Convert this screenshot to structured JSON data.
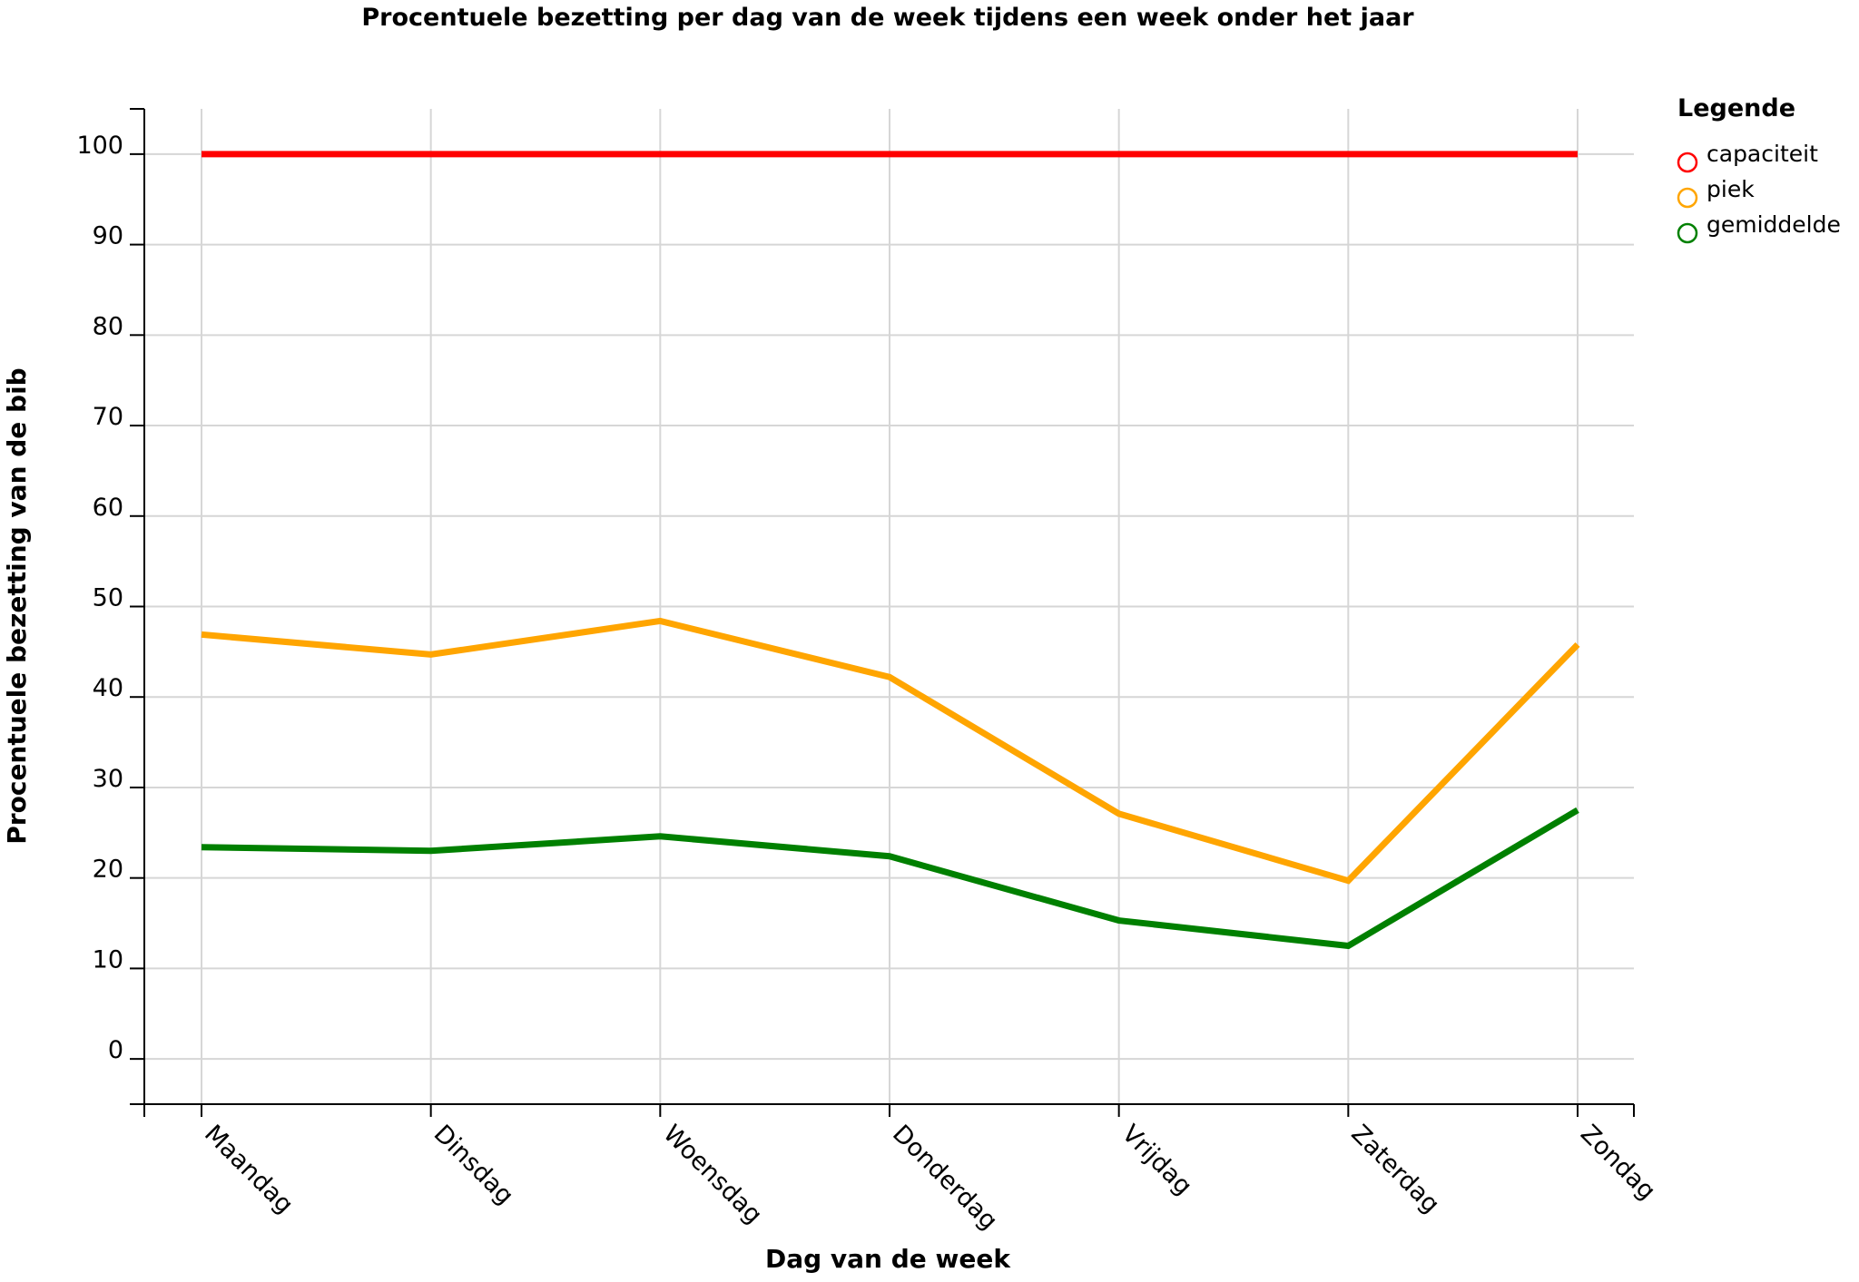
{
  "chart_data": {
    "type": "line",
    "title": "Procentuele bezetting per dag van de week tijdens een week onder het jaar",
    "xlabel": "Dag van de week",
    "ylabel": "Procentuele bezetting van de bib",
    "categories": [
      "Maandag",
      "Dinsdag",
      "Woensdag",
      "Donderdag",
      "Vrijdag",
      "Zaterdag",
      "Zondag"
    ],
    "yticks": [
      "0",
      "10",
      "20",
      "30",
      "40",
      "50",
      "60",
      "70",
      "80",
      "90",
      "100"
    ],
    "ylim": [
      -5,
      105
    ],
    "grid": true,
    "legend": {
      "title": "Legende",
      "placement": "top-right-outside"
    },
    "series": [
      {
        "name": "capaciteit",
        "color": "#ff0000",
        "values": [
          100,
          100,
          100,
          100,
          100,
          100,
          100
        ]
      },
      {
        "name": "piek",
        "color": "#ffa500",
        "values": [
          46.9,
          44.7,
          48.4,
          42.2,
          27.1,
          19.7,
          45.8
        ]
      },
      {
        "name": "gemiddelde",
        "color": "#008000",
        "values": [
          23.4,
          23.0,
          24.6,
          22.4,
          15.3,
          12.5,
          27.5
        ]
      }
    ]
  }
}
